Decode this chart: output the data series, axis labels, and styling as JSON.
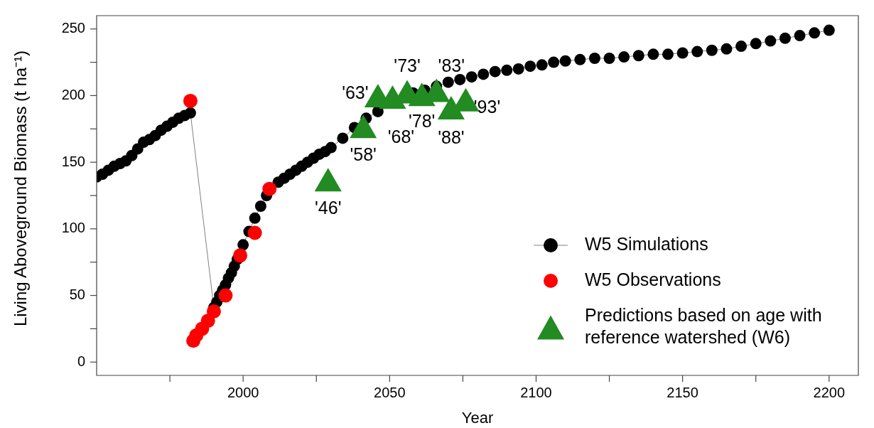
{
  "chart_data": {
    "type": "scatter",
    "xlabel": "Year",
    "ylabel": "Living Aboveground Biomass (t ha⁻¹)",
    "xlim": [
      1950,
      2210
    ],
    "xticks": [
      {
        "value": 1975,
        "label": null
      },
      2000,
      {
        "value": 2025,
        "label": null
      },
      2050,
      {
        "value": 2075,
        "label": null
      },
      2100,
      {
        "value": 2125,
        "label": null
      },
      2150,
      {
        "value": 2175,
        "label": null
      },
      2200
    ],
    "ylim": [
      -10,
      260
    ],
    "yticks": [
      0,
      {
        "value": 25,
        "label": null
      },
      50,
      {
        "value": 75,
        "label": null
      },
      100,
      {
        "value": 125,
        "label": null
      },
      150,
      {
        "value": 175,
        "label": null
      },
      200,
      {
        "value": 225,
        "label": null
      },
      250
    ],
    "legend": "bottom right",
    "series": [
      {
        "name": "W5 Simulations",
        "type": "line",
        "marker": "circle",
        "color": "#000000",
        "x": [
          1950,
          1952,
          1954,
          1956,
          1958,
          1960,
          1962,
          1964,
          1966,
          1968,
          1970,
          1972,
          1974,
          1976,
          1978,
          1980,
          1982,
          1983,
          1984,
          1985,
          1986,
          1987,
          1988,
          1989,
          1990,
          1991,
          1992,
          1993,
          1994,
          1995,
          1996,
          1997,
          1998,
          1999,
          2000,
          2002,
          2004,
          2006,
          2008,
          2010,
          2012,
          2014,
          2016,
          2018,
          2020,
          2022,
          2024,
          2026,
          2028,
          2030,
          2034,
          2038,
          2042,
          2046,
          2050,
          2054,
          2058,
          2062,
          2066,
          2070,
          2074,
          2078,
          2082,
          2086,
          2090,
          2094,
          2098,
          2102,
          2106,
          2110,
          2115,
          2120,
          2125,
          2130,
          2135,
          2140,
          2145,
          2150,
          2155,
          2160,
          2165,
          2170,
          2175,
          2180,
          2185,
          2190,
          2195,
          2200
        ],
        "values": [
          139,
          141,
          144,
          147,
          149,
          151,
          155,
          160,
          165,
          167,
          170,
          174,
          177,
          180,
          183,
          185,
          187,
          null,
          null,
          null,
          null,
          null,
          null,
          null,
          41,
          45,
          50,
          54,
          58,
          63,
          67,
          72,
          77,
          null,
          88,
          98,
          108,
          117,
          125,
          null,
          135,
          138,
          141,
          144,
          147,
          150,
          153,
          156,
          158,
          161,
          168,
          176,
          183,
          188,
          null,
          null,
          202,
          204,
          207,
          210,
          212,
          214,
          216,
          218,
          219,
          220,
          222,
          223,
          225,
          226,
          227,
          228,
          228,
          229,
          230,
          231,
          231,
          232,
          233,
          234,
          235,
          237,
          239,
          241,
          243,
          245,
          247,
          249
        ]
      },
      {
        "name": "W5 Observations",
        "marker": "circle",
        "color": "#ff0000",
        "x": [
          1982,
          1983,
          1984,
          1986,
          1988,
          1990,
          1994,
          1999,
          2004,
          2009
        ],
        "values": [
          196,
          16,
          20,
          25,
          31,
          38,
          50,
          80,
          97,
          130
        ]
      },
      {
        "name": "Predictions based on age with reference watershed (W6)",
        "marker": "triangle",
        "color": "#228b22",
        "x": [
          2029,
          2041,
          2046,
          2051,
          2056,
          2061,
          2066,
          2071,
          2076
        ],
        "values": [
          134,
          174,
          197,
          196,
          200,
          198,
          201,
          188,
          194
        ]
      }
    ],
    "annotations": [
      "'46'",
      "'58'",
      "'63'",
      "'68'",
      "'73'",
      "'78'",
      "'83'",
      "'88'",
      "'93'"
    ]
  }
}
